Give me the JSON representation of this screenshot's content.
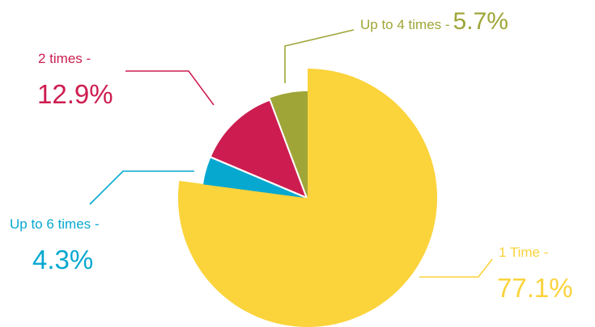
{
  "chart_data": {
    "type": "pie",
    "title": "",
    "slices": [
      {
        "label": "1 Time -",
        "percent_text": "77.1%",
        "value": 77.1,
        "color": "#FBD33B"
      },
      {
        "label": "Up to 6 times -",
        "percent_text": "4.3%",
        "value": 4.3,
        "color": "#07A8D0"
      },
      {
        "label": "2 times -",
        "percent_text": "12.9%",
        "value": 12.9,
        "color": "#CD1D50"
      },
      {
        "label": "Up to 4 times -",
        "percent_text": "5.7%",
        "value": 5.7,
        "color": "#9FA637"
      }
    ],
    "start_angle": "12 o'clock, clockwise",
    "exploded_slice": "1 Time -",
    "legend": "none (callout labels)"
  }
}
